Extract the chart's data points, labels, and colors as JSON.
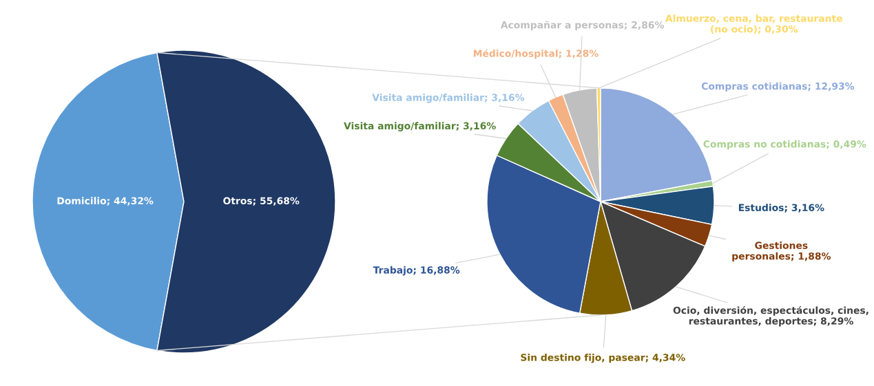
{
  "chart_data": [
    {
      "type": "pie",
      "categories": [
        "Domicilio",
        "Otros"
      ],
      "values": [
        44.32,
        55.68
      ],
      "colors": [
        "#5b9bd5",
        "#1f3864"
      ],
      "value_labels": [
        "44,32%",
        "55,68%"
      ]
    },
    {
      "type": "pie",
      "categories": [
        "Compras cotidianas",
        "Compras no cotidianas",
        "Estudios",
        "Gestiones personales",
        "Ocio, diversión, espectáculos, cines, restaurantes, deportes",
        "Sin destino fijo, pasear",
        "Trabajo",
        "Visita amigo/familiar",
        "Visita amigo/familiar",
        "Médico/hospital",
        "Acompañar a personas",
        "Almuerzo, cena, bar, restaurante (no ocio)"
      ],
      "values": [
        12.93,
        0.49,
        3.16,
        1.88,
        8.29,
        4.34,
        16.88,
        3.16,
        3.16,
        1.28,
        2.86,
        0.3
      ],
      "colors": [
        "#8faadc",
        "#a9d18e",
        "#1f4e79",
        "#843c0c",
        "#404040",
        "#7f6000",
        "#2f5597",
        "#548235",
        "#9dc3e6",
        "#f4b183",
        "#bfbfbf",
        "#ffd966"
      ],
      "value_labels": [
        "12,93%",
        "0,49%",
        "3,16%",
        "1,88%",
        "8,29%",
        "4,34%",
        "16,88%",
        "3,16%",
        "3,16%",
        "1,28%",
        "2,86%",
        "0,30%"
      ]
    }
  ]
}
